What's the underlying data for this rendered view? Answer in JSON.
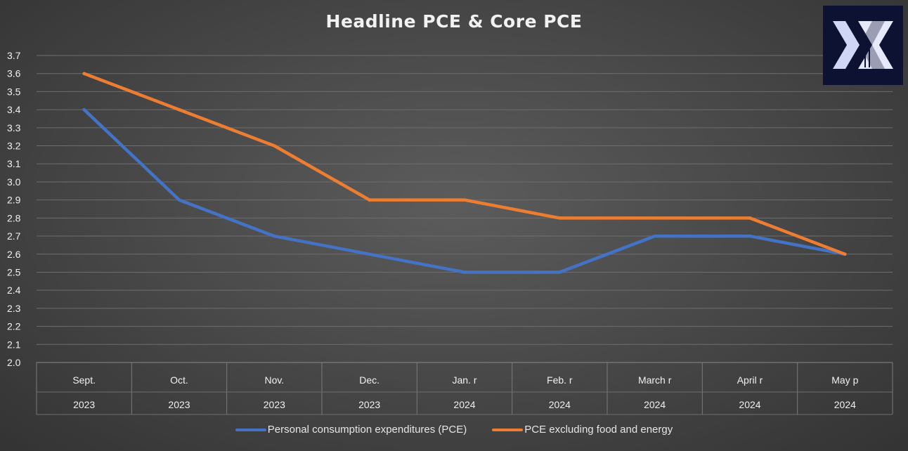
{
  "chart_data": {
    "type": "line",
    "title": "Headline PCE & Core PCE",
    "categories": [
      [
        "Sept.",
        "2023"
      ],
      [
        "Oct.",
        "2023"
      ],
      [
        "Nov.",
        "2023"
      ],
      [
        "Dec.",
        "2023"
      ],
      [
        "Jan. r",
        "2024"
      ],
      [
        "Feb. r",
        "2024"
      ],
      [
        "March r",
        "2024"
      ],
      [
        "April r",
        "2024"
      ],
      [
        "May p",
        "2024"
      ]
    ],
    "series": [
      {
        "name": "Personal consumption expenditures (PCE)",
        "color": "#4472c4",
        "values": [
          3.4,
          2.9,
          2.7,
          2.6,
          2.5,
          2.5,
          2.7,
          2.7,
          2.6
        ]
      },
      {
        "name": "PCE excluding food and energy",
        "color": "#ed7d31",
        "values": [
          3.6,
          3.4,
          3.2,
          2.9,
          2.9,
          2.8,
          2.8,
          2.8,
          2.6
        ]
      }
    ],
    "ylim": [
      2.0,
      3.7
    ],
    "ystep": 0.1,
    "yticks": [
      "2.0",
      "2.1",
      "2.2",
      "2.3",
      "2.4",
      "2.5",
      "2.6",
      "2.7",
      "2.8",
      "2.9",
      "3.0",
      "3.1",
      "3.2",
      "3.3",
      "3.4",
      "3.5",
      "3.6",
      "3.7"
    ],
    "grid": true,
    "legend_position": "bottom",
    "xlabel": "",
    "ylabel": ""
  }
}
